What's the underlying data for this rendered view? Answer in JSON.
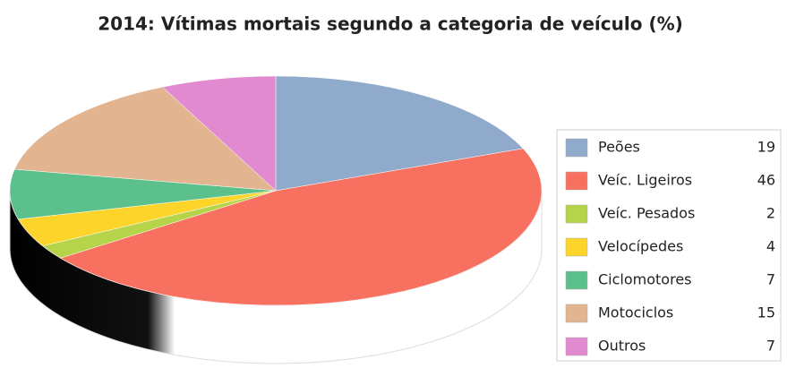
{
  "chart_data": {
    "type": "pie3d",
    "title": "2014: Vítimas mortais segundo a categoria de veículo (%)",
    "categories": [
      "Peões",
      "Veíc. Ligeiros",
      "Veíc. Pesados",
      "Velocípedes",
      "Ciclomotores",
      "Motociclos",
      "Outros"
    ],
    "values": [
      19,
      46,
      2,
      4,
      7,
      15,
      7
    ],
    "colors": [
      "#8faacb",
      "#f87060",
      "#b5d44a",
      "#fcd42a",
      "#5cc08c",
      "#e2b490",
      "#e28ad0"
    ],
    "legend": "right"
  }
}
